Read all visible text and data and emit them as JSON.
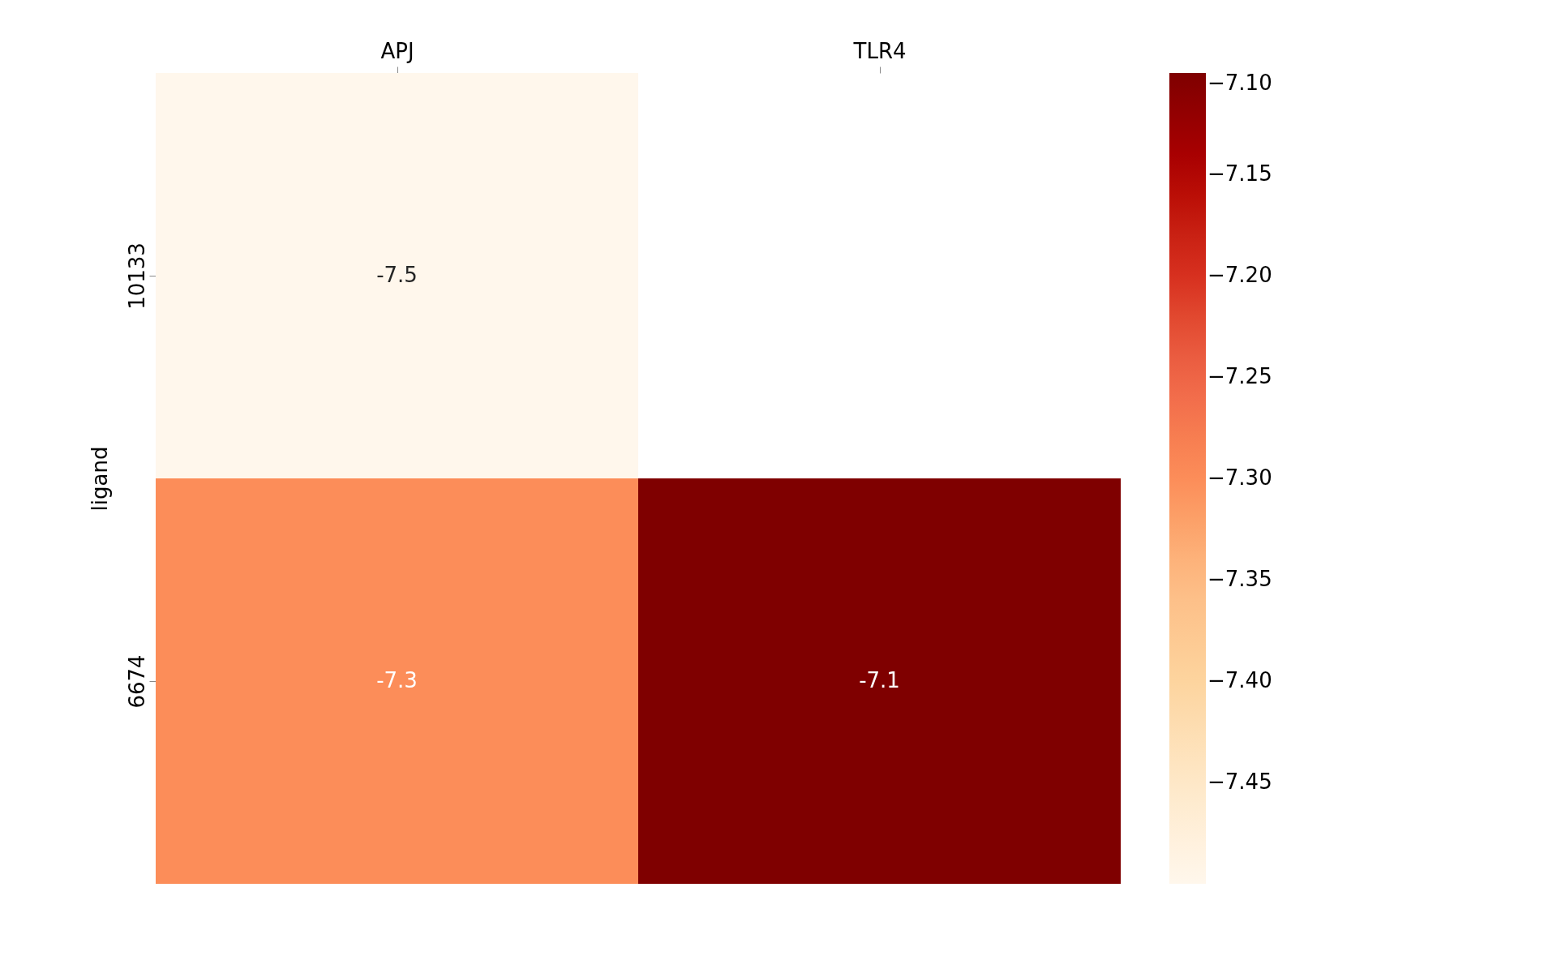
{
  "chart_data": {
    "type": "heatmap",
    "ylabel": "ligand",
    "categories": [
      "APJ",
      "TLR4"
    ],
    "y_categories": [
      "10133",
      "6674"
    ],
    "cells": [
      [
        -7.5,
        null
      ],
      [
        -7.3,
        -7.1
      ]
    ],
    "data_labels": true,
    "clim": [
      -7.5,
      -7.1
    ],
    "cticks": [
      {
        "value": -7.1,
        "label": "−7.10"
      },
      {
        "value": -7.15,
        "label": "−7.15"
      },
      {
        "value": -7.2,
        "label": "−7.20"
      },
      {
        "value": -7.25,
        "label": "−7.25"
      },
      {
        "value": -7.3,
        "label": "−7.30"
      },
      {
        "value": -7.35,
        "label": "−7.35"
      },
      {
        "value": -7.4,
        "label": "−7.40"
      },
      {
        "value": -7.45,
        "label": "−7.45"
      }
    ]
  }
}
